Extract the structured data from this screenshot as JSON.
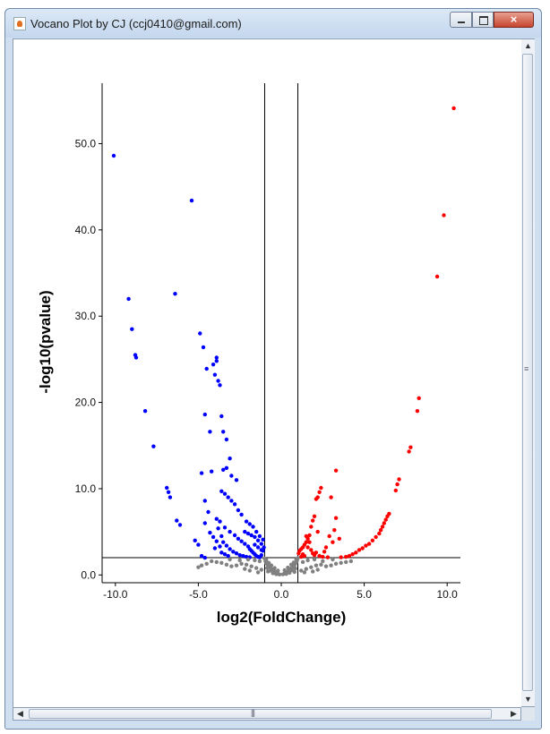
{
  "window": {
    "title": "Vocano Plot by CJ (ccj0410@gmail.com)",
    "close_label": "×",
    "scroll_up": "▲",
    "scroll_down": "▼",
    "scroll_left": "◀",
    "scroll_right": "▶"
  },
  "chart_data": {
    "type": "scatter",
    "title": "",
    "xlabel": "log2(FoldChange)",
    "ylabel": "-log10(pvalue)",
    "xlim": [
      -10.8,
      10.8
    ],
    "ylim": [
      -0.9,
      57
    ],
    "xticks": [
      -10,
      -5,
      0,
      5,
      10
    ],
    "xtick_labels": [
      "-10.0",
      "-5.0",
      "0.0",
      "5.0",
      "10.0"
    ],
    "yticks": [
      0,
      10,
      20,
      30,
      40,
      50
    ],
    "ytick_labels": [
      "0.0",
      "10.0",
      "20.0",
      "30.0",
      "40.0",
      "50.0"
    ],
    "reference_lines": {
      "vertical": [
        -1,
        1
      ],
      "horizontal": [
        2
      ]
    },
    "colors": {
      "down": "#0000ff",
      "up": "#ff0000",
      "ns": "#808080",
      "axis": "#000000"
    },
    "series": [
      {
        "color": "#0000ff",
        "points": [
          [
            -10.1,
            48.6
          ],
          [
            -9.2,
            32.0
          ],
          [
            -9.0,
            28.5
          ],
          [
            -8.8,
            25.5
          ],
          [
            -8.75,
            25.2
          ],
          [
            -8.2,
            19.0
          ],
          [
            -7.7,
            14.9
          ],
          [
            -6.9,
            10.1
          ],
          [
            -6.8,
            9.6
          ],
          [
            -6.7,
            9.0
          ],
          [
            -6.3,
            6.3
          ],
          [
            -6.1,
            5.8
          ],
          [
            -6.4,
            32.6
          ],
          [
            -5.4,
            43.4
          ],
          [
            -5.2,
            4.0
          ],
          [
            -5.0,
            3.5
          ],
          [
            -4.9,
            28.0
          ],
          [
            -4.7,
            26.4
          ],
          [
            -4.6,
            18.6
          ],
          [
            -4.5,
            23.9
          ],
          [
            -4.3,
            16.6
          ],
          [
            -4.1,
            24.4
          ],
          [
            -4.0,
            23.2
          ],
          [
            -3.9,
            25.2
          ],
          [
            -3.9,
            24.8
          ],
          [
            -3.8,
            22.5
          ],
          [
            -3.7,
            22.0
          ],
          [
            -3.6,
            18.4
          ],
          [
            -3.5,
            16.6
          ],
          [
            -3.3,
            15.7
          ],
          [
            -3.1,
            13.5
          ],
          [
            -4.8,
            11.8
          ],
          [
            -4.2,
            12.0
          ],
          [
            -3.5,
            12.2
          ],
          [
            -3.3,
            12.4
          ],
          [
            -3.0,
            11.5
          ],
          [
            -2.7,
            11.0
          ],
          [
            -3.6,
            9.7
          ],
          [
            -3.4,
            9.4
          ],
          [
            -3.2,
            9.0
          ],
          [
            -3.0,
            8.6
          ],
          [
            -2.8,
            8.2
          ],
          [
            -2.6,
            7.5
          ],
          [
            -2.4,
            7.0
          ],
          [
            -4.6,
            8.6
          ],
          [
            -4.4,
            7.3
          ],
          [
            -4.6,
            6.0
          ],
          [
            -3.9,
            6.5
          ],
          [
            -3.7,
            6.2
          ],
          [
            -3.4,
            5.5
          ],
          [
            -3.1,
            5.0
          ],
          [
            -2.8,
            4.6
          ],
          [
            -2.6,
            4.2
          ],
          [
            -2.4,
            3.9
          ],
          [
            -2.2,
            3.6
          ],
          [
            -2.0,
            3.3
          ],
          [
            -1.9,
            3.0
          ],
          [
            -1.8,
            2.8
          ],
          [
            -1.7,
            2.6
          ],
          [
            -1.6,
            2.4
          ],
          [
            -1.5,
            2.2
          ],
          [
            -1.4,
            2.1
          ],
          [
            -1.3,
            2.05
          ],
          [
            -1.2,
            2.3
          ],
          [
            -1.1,
            2.8
          ],
          [
            -1.05,
            3.2
          ],
          [
            -3.8,
            5.4
          ],
          [
            -3.6,
            4.5
          ],
          [
            -3.5,
            3.8
          ],
          [
            -3.3,
            3.4
          ],
          [
            -3.1,
            3.0
          ],
          [
            -2.9,
            2.7
          ],
          [
            -2.7,
            2.5
          ],
          [
            -2.5,
            2.3
          ],
          [
            -2.3,
            2.2
          ],
          [
            -2.1,
            2.1
          ],
          [
            -1.9,
            2.05
          ],
          [
            -4.3,
            4.9
          ],
          [
            -4.1,
            4.4
          ],
          [
            -3.9,
            3.9
          ],
          [
            -4.0,
            3.1
          ],
          [
            -3.7,
            3.3
          ],
          [
            -3.6,
            2.6
          ],
          [
            -3.4,
            2.4
          ],
          [
            -3.2,
            2.2
          ],
          [
            -4.8,
            2.2
          ],
          [
            -4.6,
            2.0
          ],
          [
            -2.2,
            5.0
          ],
          [
            -2.0,
            4.8
          ],
          [
            -1.8,
            4.6
          ],
          [
            -1.6,
            4.4
          ],
          [
            -1.4,
            4.0
          ],
          [
            -1.2,
            3.6
          ],
          [
            -2.1,
            6.2
          ],
          [
            -1.9,
            5.9
          ],
          [
            -1.7,
            5.6
          ],
          [
            -1.5,
            5.0
          ],
          [
            -1.3,
            4.5
          ],
          [
            -1.1,
            4.1
          ],
          [
            -1.6,
            3.5
          ],
          [
            -1.4,
            3.2
          ],
          [
            -1.2,
            2.9
          ]
        ]
      },
      {
        "color": "#ff0000",
        "points": [
          [
            10.4,
            54.1
          ],
          [
            9.8,
            41.7
          ],
          [
            9.4,
            34.6
          ],
          [
            8.3,
            20.5
          ],
          [
            8.2,
            19.0
          ],
          [
            7.8,
            14.8
          ],
          [
            7.7,
            14.3
          ],
          [
            7.1,
            11.1
          ],
          [
            7.0,
            10.5
          ],
          [
            6.9,
            9.8
          ],
          [
            6.5,
            7.1
          ],
          [
            6.4,
            6.8
          ],
          [
            6.3,
            6.4
          ],
          [
            6.2,
            6.0
          ],
          [
            6.1,
            5.6
          ],
          [
            6.0,
            5.2
          ],
          [
            5.9,
            4.8
          ],
          [
            5.7,
            4.4
          ],
          [
            5.5,
            4.0
          ],
          [
            5.3,
            3.6
          ],
          [
            5.1,
            3.4
          ],
          [
            4.9,
            3.1
          ],
          [
            4.7,
            2.9
          ],
          [
            4.5,
            2.6
          ],
          [
            4.3,
            2.4
          ],
          [
            4.1,
            2.2
          ],
          [
            3.9,
            2.1
          ],
          [
            3.6,
            2.05
          ],
          [
            3.3,
            12.1
          ],
          [
            3.3,
            6.6
          ],
          [
            3.2,
            5.2
          ],
          [
            3.1,
            3.8
          ],
          [
            3.0,
            9.0
          ],
          [
            2.9,
            4.5
          ],
          [
            2.7,
            3.2
          ],
          [
            2.6,
            2.7
          ],
          [
            2.4,
            10.1
          ],
          [
            2.3,
            9.6
          ],
          [
            2.2,
            9.0
          ],
          [
            2.1,
            8.8
          ],
          [
            2.2,
            5.0
          ],
          [
            2.0,
            6.8
          ],
          [
            1.9,
            6.3
          ],
          [
            1.8,
            5.6
          ],
          [
            1.7,
            4.6
          ],
          [
            1.6,
            4.2
          ],
          [
            1.5,
            3.8
          ],
          [
            1.4,
            3.5
          ],
          [
            1.3,
            3.2
          ],
          [
            1.2,
            3.0
          ],
          [
            1.1,
            2.8
          ],
          [
            1.05,
            2.5
          ],
          [
            1.5,
            4.5
          ],
          [
            1.6,
            3.2
          ],
          [
            1.7,
            3.8
          ],
          [
            1.8,
            2.9
          ],
          [
            1.9,
            2.5
          ],
          [
            2.0,
            2.3
          ],
          [
            2.1,
            2.6
          ],
          [
            2.3,
            2.2
          ],
          [
            2.5,
            2.1
          ],
          [
            2.8,
            2.05
          ],
          [
            1.2,
            2.1
          ],
          [
            1.3,
            2.4
          ],
          [
            1.4,
            2.2
          ],
          [
            3.5,
            4.2
          ]
        ]
      },
      {
        "color": "#808080",
        "points": [
          [
            -0.1,
            0.05
          ],
          [
            0.1,
            0.08
          ],
          [
            -0.2,
            0.15
          ],
          [
            0.2,
            0.2
          ],
          [
            -0.3,
            0.25
          ],
          [
            0.3,
            0.3
          ],
          [
            -0.4,
            0.4
          ],
          [
            0.4,
            0.45
          ],
          [
            -0.5,
            0.55
          ],
          [
            0.5,
            0.6
          ],
          [
            -0.6,
            0.7
          ],
          [
            0.6,
            0.75
          ],
          [
            -0.7,
            0.9
          ],
          [
            0.7,
            0.95
          ],
          [
            -0.8,
            1.1
          ],
          [
            0.8,
            1.15
          ],
          [
            -0.9,
            1.35
          ],
          [
            0.9,
            1.4
          ],
          [
            -0.95,
            1.6
          ],
          [
            0.95,
            1.7
          ],
          [
            -1.0,
            1.9
          ],
          [
            1.0,
            1.95
          ],
          [
            -0.5,
            0.2
          ],
          [
            0.5,
            0.25
          ],
          [
            -0.8,
            0.4
          ],
          [
            0.8,
            0.35
          ],
          [
            -0.3,
            0.1
          ],
          [
            0.3,
            0.12
          ],
          [
            -0.65,
            0.5
          ],
          [
            0.65,
            0.55
          ],
          [
            -0.85,
            0.8
          ],
          [
            0.85,
            0.75
          ],
          [
            -1.2,
            0.6
          ],
          [
            -1.5,
            0.8
          ],
          [
            -1.8,
            1.0
          ],
          [
            -2.1,
            1.2
          ],
          [
            -2.4,
            1.3
          ],
          [
            -2.7,
            1.1
          ],
          [
            -3.0,
            1.0
          ],
          [
            -3.3,
            1.2
          ],
          [
            -3.6,
            1.4
          ],
          [
            -3.9,
            1.5
          ],
          [
            -4.2,
            1.6
          ],
          [
            -4.5,
            1.3
          ],
          [
            -4.8,
            1.1
          ],
          [
            -5.0,
            0.9
          ],
          [
            -1.3,
            1.6
          ],
          [
            -1.6,
            1.7
          ],
          [
            -2.0,
            1.8
          ],
          [
            -2.5,
            1.7
          ],
          [
            -3.1,
            1.8
          ],
          [
            -1.4,
            0.3
          ],
          [
            -1.9,
            0.5
          ],
          [
            -2.2,
            0.7
          ],
          [
            1.2,
            0.5
          ],
          [
            1.5,
            0.7
          ],
          [
            1.8,
            0.9
          ],
          [
            2.1,
            1.1
          ],
          [
            2.4,
            1.2
          ],
          [
            2.7,
            1.0
          ],
          [
            3.0,
            1.1
          ],
          [
            3.3,
            1.3
          ],
          [
            3.6,
            1.4
          ],
          [
            3.9,
            1.5
          ],
          [
            4.2,
            1.6
          ],
          [
            1.3,
            1.5
          ],
          [
            1.6,
            1.7
          ],
          [
            2.0,
            1.8
          ],
          [
            2.5,
            1.6
          ],
          [
            3.1,
            1.8
          ],
          [
            1.4,
            0.3
          ],
          [
            1.9,
            0.4
          ],
          [
            2.2,
            0.6
          ],
          [
            -0.2,
            0.5
          ],
          [
            0.2,
            0.55
          ],
          [
            -0.4,
            0.8
          ],
          [
            0.4,
            0.85
          ],
          [
            -0.6,
            1.1
          ],
          [
            0.6,
            1.2
          ],
          [
            -0.75,
            1.4
          ],
          [
            0.75,
            1.45
          ],
          [
            -0.9,
            1.75
          ],
          [
            0.9,
            1.8
          ]
        ]
      }
    ]
  }
}
